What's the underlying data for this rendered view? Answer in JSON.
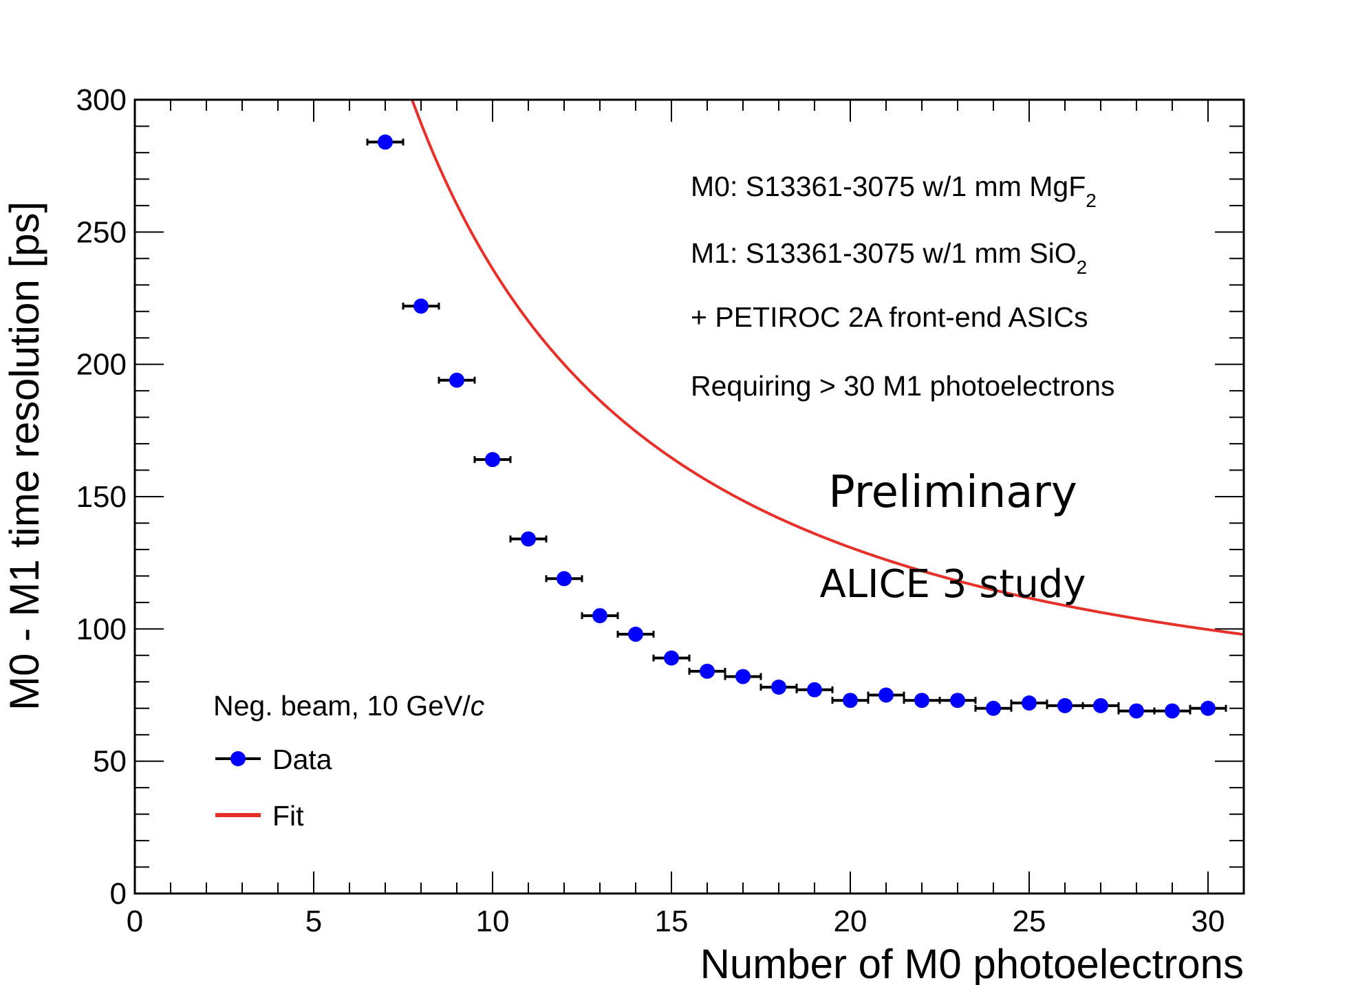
{
  "chart_data": {
    "type": "scatter",
    "xlabel": "Number of M0 photoelectrons",
    "ylabel": "M0 - M1 time resolution [ps]",
    "xlim": [
      0,
      31
    ],
    "ylim": [
      0,
      300
    ],
    "x_ticks": [
      "0",
      "5",
      "10",
      "15",
      "20",
      "25",
      "30"
    ],
    "y_ticks": [
      "0",
      "50",
      "100",
      "150",
      "200",
      "250",
      "300"
    ],
    "series": [
      {
        "name": "Data",
        "color": "#0000ff",
        "x": [
          7,
          8,
          9,
          10,
          11,
          12,
          13,
          14,
          15,
          16,
          17,
          18,
          19,
          20,
          21,
          22,
          23,
          24,
          25,
          26,
          27,
          28,
          29,
          30
        ],
        "y": [
          284,
          222,
          194,
          164,
          134,
          119,
          105,
          98,
          89,
          84,
          82,
          78,
          77,
          73,
          75,
          73,
          73,
          70,
          72,
          71,
          71,
          69,
          69,
          70
        ],
        "x_err": 0.5
      },
      {
        "name": "Fit",
        "color": "#e8302a",
        "type": "line",
        "function": "sqrt(a^2/x^2 + c^2)",
        "params": {
          "a": 2270,
          "c": 65
        }
      }
    ],
    "annotations": {
      "m0": "M0: S13361-3075 w/1 mm MgF",
      "m0_sub": "2",
      "m1": "M1: S13361-3075 w/1 mm SiO",
      "m1_sub": "2",
      "asic": "+ PETIROC 2A front-end ASICs",
      "req": "Requiring > 30 M1 photoelectrons",
      "preliminary": "Preliminary",
      "study": "ALICE 3 study"
    },
    "legend": {
      "placement": "bottom-left",
      "header_prefix": "Neg. beam, 10 GeV/",
      "header_italic": "c",
      "entries": [
        "Data",
        "Fit"
      ]
    }
  }
}
